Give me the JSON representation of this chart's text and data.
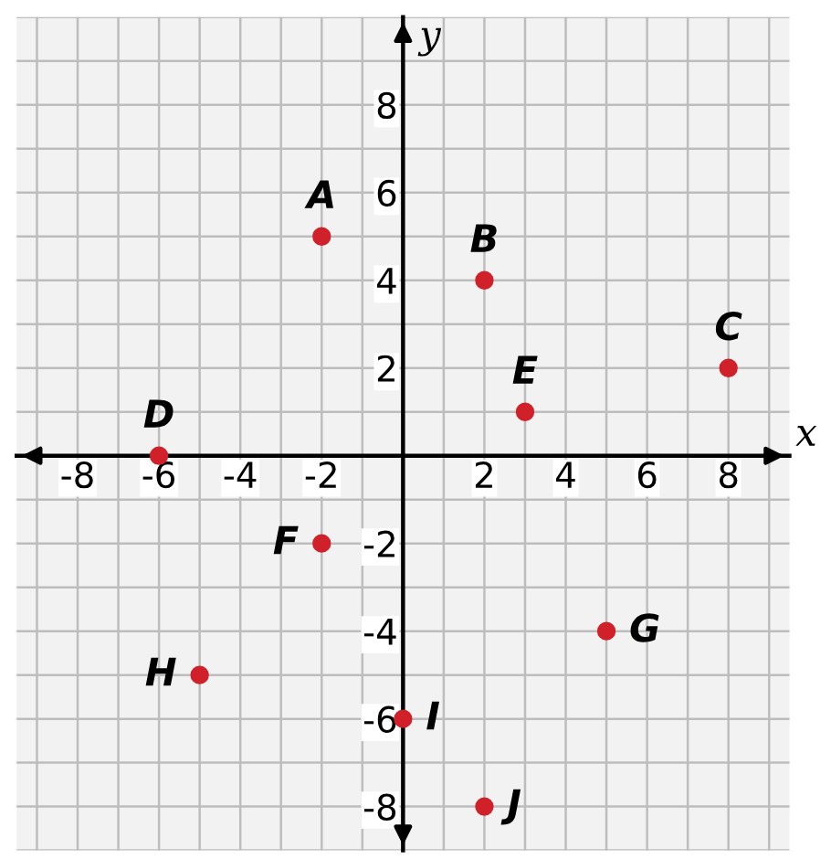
{
  "chart_data": {
    "type": "scatter",
    "xlabel": "x",
    "ylabel": "y",
    "series": [
      {
        "color": "#d0202a",
        "x": [
          -2,
          2,
          8,
          -6,
          3,
          -2,
          5,
          -5,
          0,
          2
        ],
        "values": [
          5,
          4,
          2,
          0,
          1,
          -2,
          -4,
          -5,
          -6,
          -8
        ]
      }
    ],
    "annotations": [
      {
        "text": "A",
        "x": -2,
        "y": 5
      },
      {
        "text": "B",
        "x": 2,
        "y": 4
      },
      {
        "text": "C",
        "x": 8,
        "y": 2
      },
      {
        "text": "D",
        "x": -6,
        "y": 0
      },
      {
        "text": "E",
        "x": 3,
        "y": 1
      },
      {
        "text": "F",
        "x": -2,
        "y": -2
      },
      {
        "text": "G",
        "x": 5,
        "y": -4
      },
      {
        "text": "H",
        "x": -5,
        "y": -5
      },
      {
        "text": "I",
        "x": 0,
        "y": -6
      },
      {
        "text": "J",
        "x": 2,
        "y": -8
      }
    ],
    "xlim": [
      -9.5,
      9.5
    ],
    "ylim": [
      -9,
      10
    ],
    "xticks": [
      -8,
      -6,
      -4,
      -2,
      2,
      4,
      6,
      8
    ],
    "yticks": [
      -8,
      -6,
      -4,
      -2,
      2,
      4,
      6,
      8
    ],
    "grid": true,
    "marker": "circle"
  }
}
